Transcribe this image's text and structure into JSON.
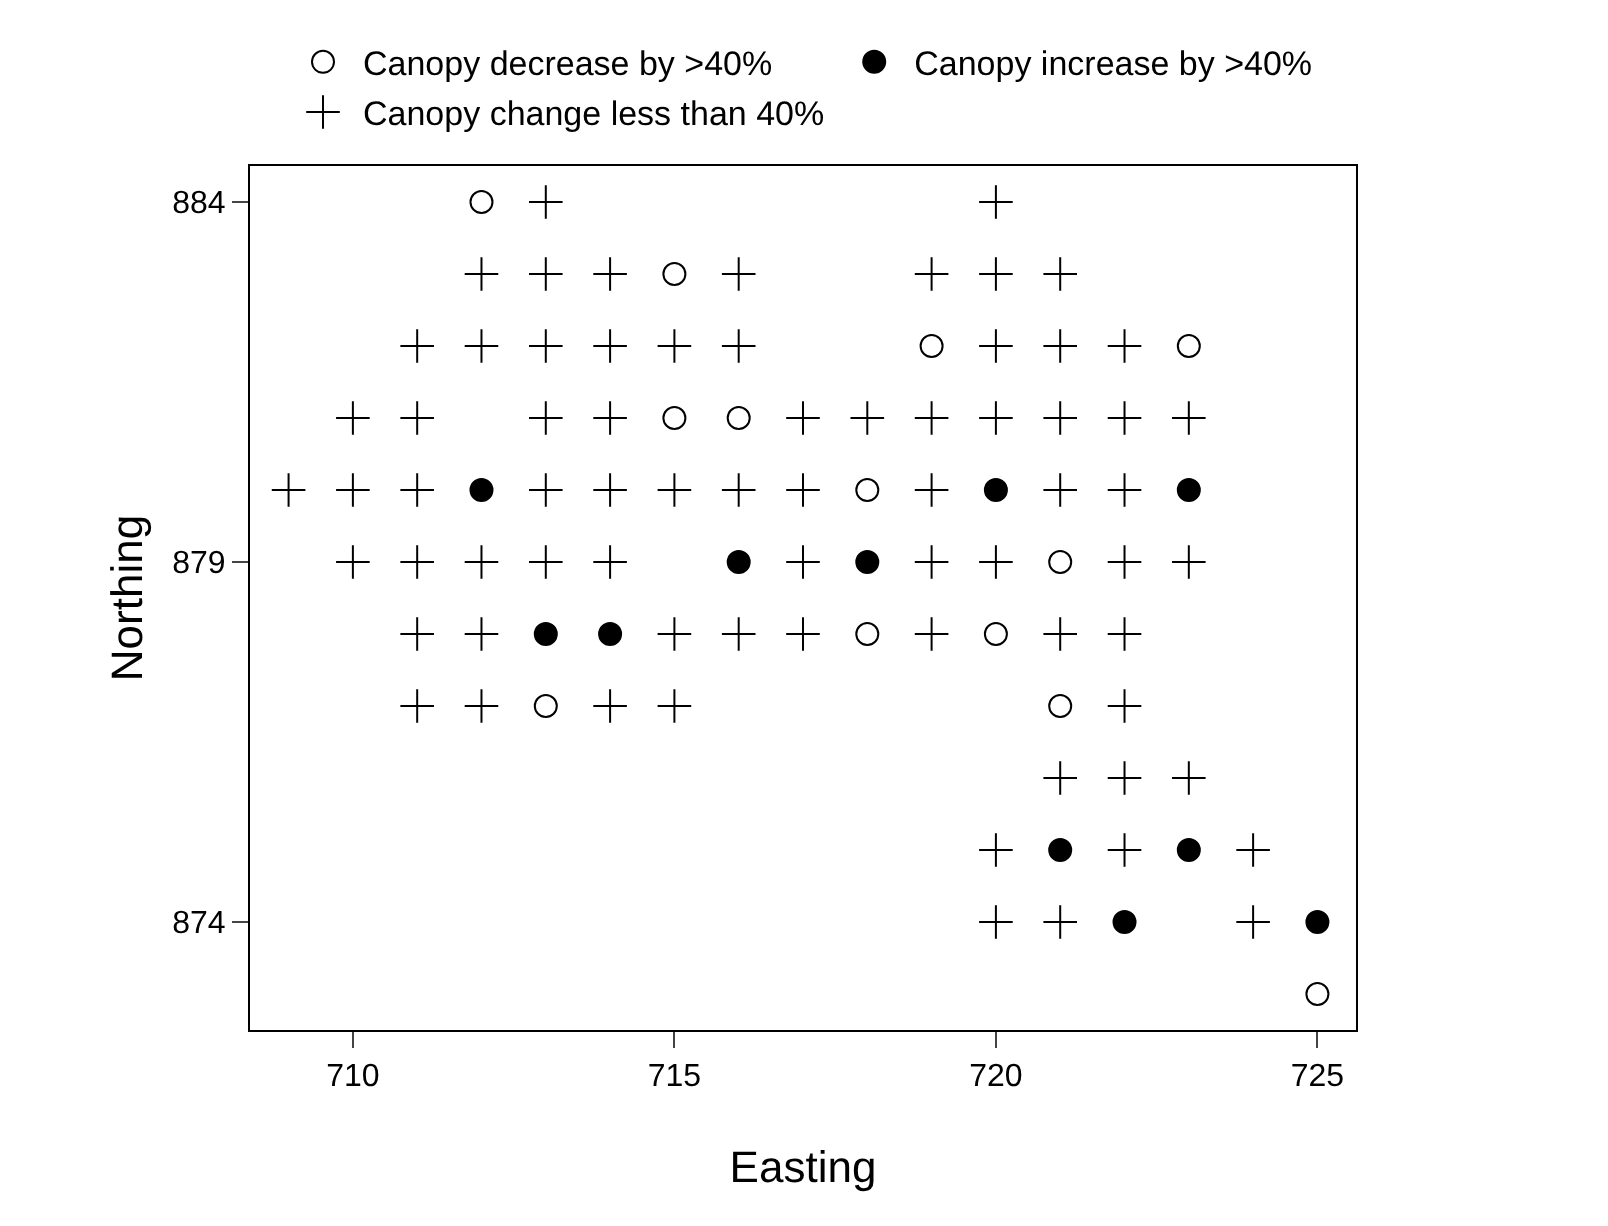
{
  "chart_data": {
    "type": "scatter",
    "xlabel": "Easting",
    "ylabel": "Northing",
    "xlim": [
      708.4,
      725.6
    ],
    "xticks": [
      710,
      715,
      720,
      725
    ],
    "ylim": [
      872.5,
      884.5
    ],
    "yticks": [
      874,
      879,
      884
    ],
    "grid": false,
    "legend": "top",
    "series": [
      {
        "name": "Canopy decrease by >40%",
        "color": "#ffffff",
        "marker": "circle",
        "x": [
          712,
          715,
          719,
          723,
          715,
          716,
          718,
          721,
          718,
          720,
          713,
          721,
          725
        ],
        "values": [
          884,
          883,
          882,
          882,
          881,
          881,
          880,
          879,
          878,
          878,
          877,
          877,
          873
        ]
      },
      {
        "name": "Canopy increase by >40%",
        "color": "#000000",
        "marker": "circle",
        "x": [
          712,
          720,
          723,
          716,
          718,
          713,
          714,
          721,
          723,
          722,
          725
        ],
        "values": [
          880,
          880,
          880,
          879,
          879,
          878,
          878,
          875,
          875,
          874,
          874
        ]
      },
      {
        "name": "Canopy change less than 40%",
        "color": "#000000",
        "marker": "cross",
        "x": [
          713,
          720,
          712,
          713,
          714,
          716,
          719,
          720,
          721,
          711,
          712,
          713,
          714,
          715,
          716,
          720,
          721,
          722,
          710,
          711,
          713,
          714,
          717,
          718,
          719,
          720,
          721,
          722,
          723,
          709,
          710,
          711,
          713,
          714,
          715,
          716,
          717,
          719,
          721,
          722,
          710,
          711,
          712,
          713,
          714,
          717,
          719,
          720,
          722,
          723,
          711,
          712,
          715,
          716,
          717,
          719,
          721,
          722,
          711,
          712,
          714,
          715,
          722,
          721,
          722,
          723,
          720,
          722,
          724,
          720,
          721,
          724
        ],
        "values": [
          884,
          884,
          883,
          883,
          883,
          883,
          883,
          883,
          883,
          882,
          882,
          882,
          882,
          882,
          882,
          882,
          882,
          882,
          881,
          881,
          881,
          881,
          881,
          881,
          881,
          881,
          881,
          881,
          881,
          880,
          880,
          880,
          880,
          880,
          880,
          880,
          880,
          880,
          880,
          880,
          879,
          879,
          879,
          879,
          879,
          879,
          879,
          879,
          879,
          879,
          878,
          878,
          878,
          878,
          878,
          878,
          878,
          878,
          877,
          877,
          877,
          877,
          877,
          876,
          876,
          876,
          875,
          875,
          875,
          874,
          874,
          874
        ]
      }
    ]
  }
}
